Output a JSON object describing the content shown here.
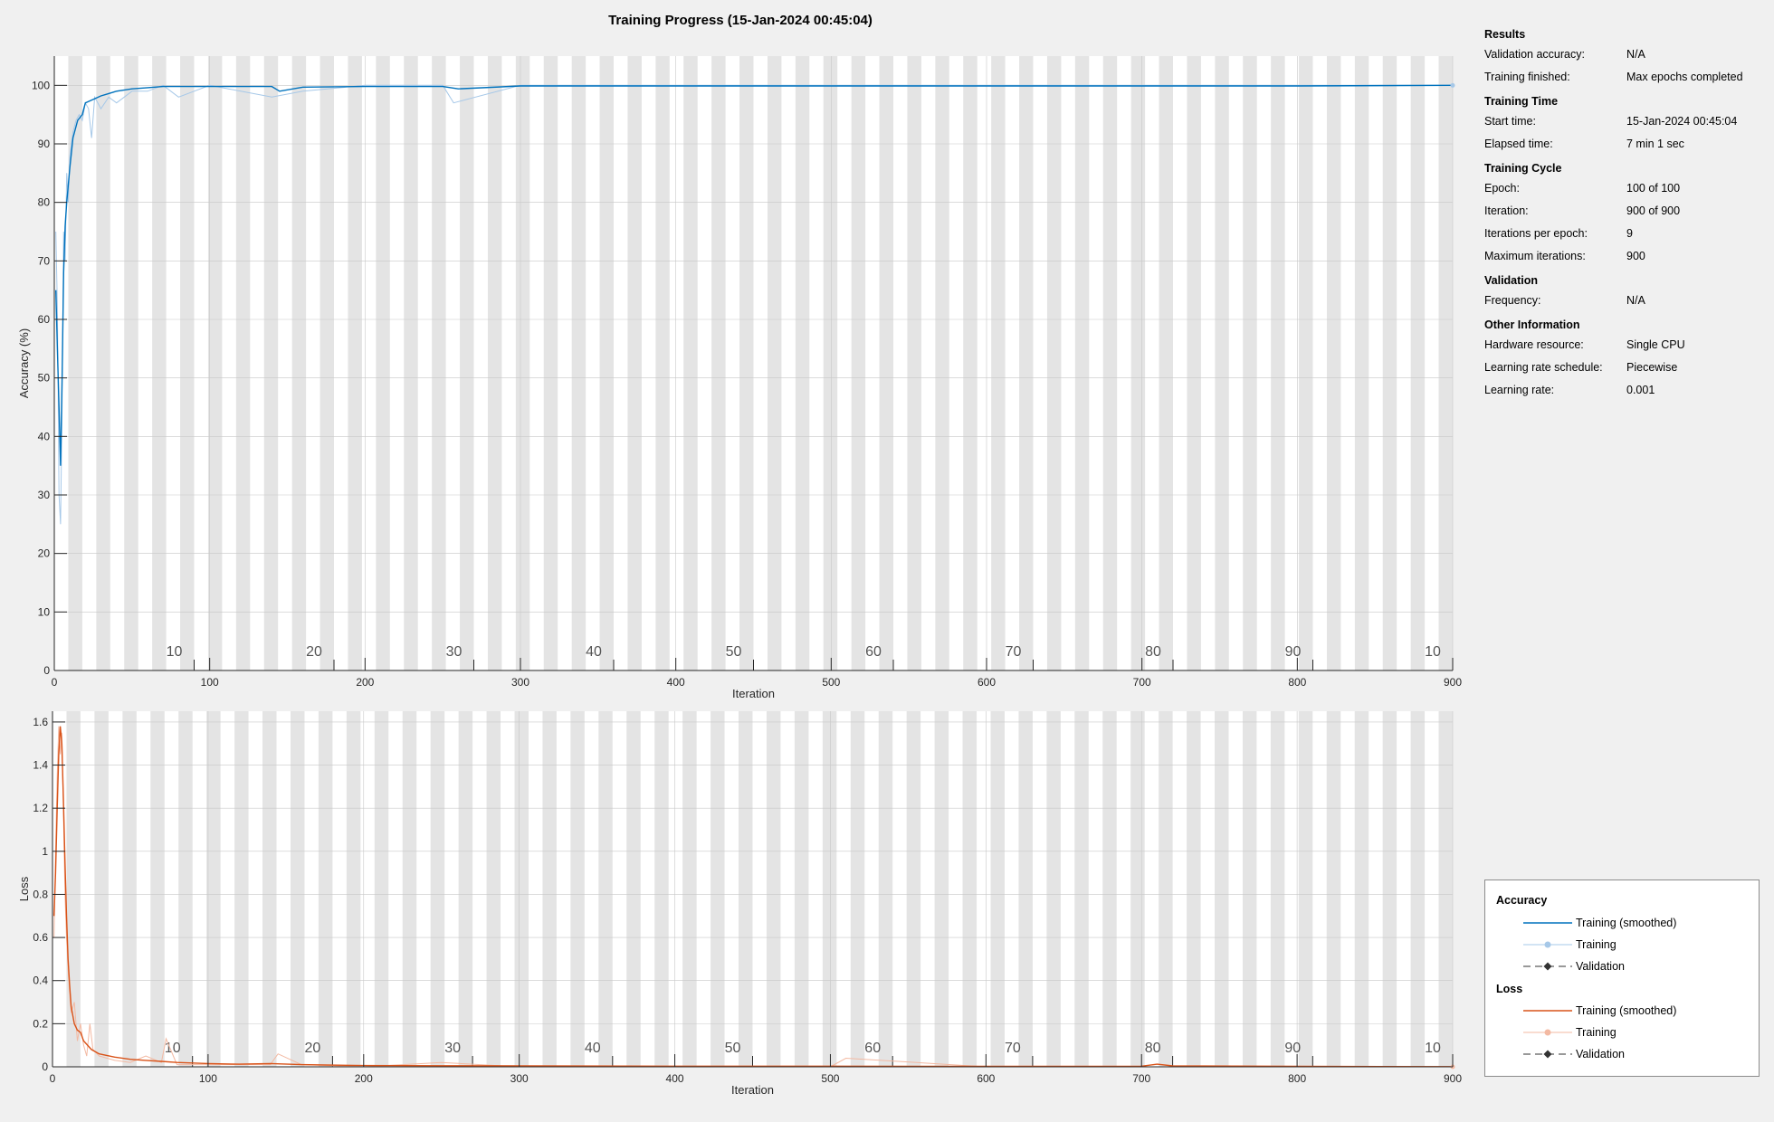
{
  "window": {
    "title": "Training Progress (15-Jan-2024 00:45:04)"
  },
  "info": {
    "sections": [
      {
        "heading": "Results",
        "rows": [
          {
            "label": "Validation accuracy:",
            "value": "N/A"
          },
          {
            "label": "Training finished:",
            "value": "Max epochs completed"
          }
        ]
      },
      {
        "heading": "Training Time",
        "rows": [
          {
            "label": "Start time:",
            "value": "15-Jan-2024 00:45:04"
          },
          {
            "label": "Elapsed time:",
            "value": "7 min 1 sec"
          }
        ]
      },
      {
        "heading": "Training Cycle",
        "rows": [
          {
            "label": "Epoch:",
            "value": "100 of 100"
          },
          {
            "label": "Iteration:",
            "value": "900 of 900"
          },
          {
            "label": "Iterations per epoch:",
            "value": "9"
          },
          {
            "label": "Maximum iterations:",
            "value": "900"
          }
        ]
      },
      {
        "heading": "Validation",
        "rows": [
          {
            "label": "Frequency:",
            "value": "N/A"
          }
        ]
      },
      {
        "heading": "Other Information",
        "rows": [
          {
            "label": "Hardware resource:",
            "value": "Single CPU"
          },
          {
            "label": "Learning rate schedule:",
            "value": "Piecewise"
          },
          {
            "label": "Learning rate:",
            "value": "0.001"
          }
        ]
      }
    ]
  },
  "legend": {
    "accuracy_heading": "Accuracy",
    "loss_heading": "Loss",
    "items": {
      "acc_smoothed": "Training (smoothed)",
      "acc_training": "Training",
      "acc_validation": "Validation",
      "loss_smoothed": "Training (smoothed)",
      "loss_training": "Training",
      "loss_validation": "Validation"
    }
  },
  "chart_data": [
    {
      "type": "line",
      "id": "accuracy",
      "ylabel": "Accuracy (%)",
      "xlabel": "Iteration",
      "xlim": [
        0,
        900
      ],
      "ylim": [
        0,
        105
      ],
      "xticks": [
        0,
        100,
        200,
        300,
        400,
        500,
        600,
        700,
        800,
        900
      ],
      "yticks": [
        0,
        10,
        20,
        30,
        40,
        50,
        60,
        70,
        80,
        90,
        100
      ],
      "epoch_labels": [
        "10",
        "20",
        "30",
        "40",
        "50",
        "60",
        "70",
        "80",
        "90",
        "10"
      ],
      "epoch_count": 100,
      "iterations_per_epoch": 9,
      "grid": true,
      "colors": {
        "smoothed": "#0072bd",
        "raw": "#a6c8e8"
      },
      "series": [
        {
          "name": "Training (smoothed)",
          "x": [
            1,
            2,
            3,
            4,
            5,
            6,
            7,
            8,
            10,
            12,
            15,
            18,
            20,
            25,
            30,
            35,
            40,
            50,
            60,
            70,
            80,
            100,
            120,
            140,
            145,
            160,
            200,
            250,
            260,
            300,
            400,
            500,
            600,
            700,
            800,
            900
          ],
          "y": [
            65,
            55,
            45,
            35,
            50,
            68,
            76,
            80,
            86,
            91,
            94,
            95,
            97,
            97.6,
            98.2,
            98.6,
            99,
            99.4,
            99.6,
            99.8,
            99.8,
            99.8,
            99.8,
            99.8,
            99,
            99.7,
            99.8,
            99.8,
            99.4,
            99.9,
            99.9,
            99.9,
            99.9,
            99.9,
            99.9,
            100
          ]
        },
        {
          "name": "Training",
          "x": [
            1,
            2,
            3,
            4,
            5,
            6,
            7,
            8,
            9,
            10,
            11,
            12,
            14,
            16,
            18,
            20,
            22,
            24,
            26,
            28,
            30,
            35,
            40,
            45,
            50,
            60,
            70,
            80,
            100,
            120,
            140,
            160,
            200,
            250,
            257,
            300,
            400,
            500,
            600,
            700,
            800,
            900
          ],
          "y": [
            75,
            62,
            30,
            25,
            45,
            75,
            70,
            85,
            80,
            88,
            90,
            92,
            94,
            95,
            94,
            97,
            96,
            91,
            98,
            97,
            96,
            98,
            97,
            98,
            99,
            99,
            100,
            98,
            100,
            99,
            98,
            99,
            100,
            100,
            97,
            100,
            100,
            100,
            100,
            100,
            100,
            100
          ]
        }
      ]
    },
    {
      "type": "line",
      "id": "loss",
      "ylabel": "Loss",
      "xlabel": "Iteration",
      "xlim": [
        0,
        900
      ],
      "ylim": [
        0,
        1.65
      ],
      "xticks": [
        0,
        100,
        200,
        300,
        400,
        500,
        600,
        700,
        800,
        900
      ],
      "yticks": [
        0,
        0.2,
        0.4,
        0.6,
        0.8,
        1,
        1.2,
        1.4,
        1.6
      ],
      "epoch_labels": [
        "10",
        "20",
        "30",
        "40",
        "50",
        "60",
        "70",
        "80",
        "90",
        "10"
      ],
      "epoch_count": 100,
      "iterations_per_epoch": 9,
      "grid": true,
      "colors": {
        "smoothed": "#d95319",
        "raw": "#f3b9a2"
      },
      "series": [
        {
          "name": "Training (smoothed)",
          "x": [
            1,
            2,
            3,
            4,
            5,
            6,
            7,
            8,
            9,
            10,
            11,
            12,
            14,
            16,
            18,
            20,
            25,
            30,
            40,
            50,
            60,
            70,
            80,
            100,
            120,
            140,
            160,
            200,
            250,
            300,
            400,
            500,
            600,
            700,
            710,
            720,
            800,
            900
          ],
          "y": [
            0.7,
            0.9,
            1.2,
            1.45,
            1.58,
            1.5,
            1.25,
            0.95,
            0.7,
            0.5,
            0.38,
            0.28,
            0.2,
            0.17,
            0.16,
            0.12,
            0.08,
            0.06,
            0.045,
            0.035,
            0.03,
            0.025,
            0.02,
            0.015,
            0.012,
            0.015,
            0.01,
            0.006,
            0.005,
            0.004,
            0.003,
            0.003,
            0.002,
            0.003,
            0.012,
            0.004,
            0.002,
            0.001
          ]
        },
        {
          "name": "Training",
          "x": [
            1,
            2,
            3,
            4,
            5,
            6,
            7,
            8,
            9,
            10,
            12,
            14,
            16,
            18,
            20,
            22,
            24,
            26,
            30,
            40,
            50,
            60,
            70,
            73,
            80,
            100,
            140,
            145,
            160,
            200,
            250,
            300,
            400,
            500,
            510,
            600,
            700,
            800,
            900
          ],
          "y": [
            0.6,
            1.0,
            1.35,
            1.58,
            1.45,
            1.55,
            1.2,
            0.8,
            0.6,
            0.45,
            0.25,
            0.3,
            0.12,
            0.2,
            0.1,
            0.05,
            0.2,
            0.08,
            0.05,
            0.03,
            0.02,
            0.05,
            0.02,
            0.13,
            0.01,
            0.01,
            0.01,
            0.06,
            0.01,
            0.0,
            0.02,
            0.0,
            0.0,
            0.0,
            0.04,
            0.0,
            0.0,
            0.0,
            0.0
          ]
        }
      ]
    }
  ]
}
